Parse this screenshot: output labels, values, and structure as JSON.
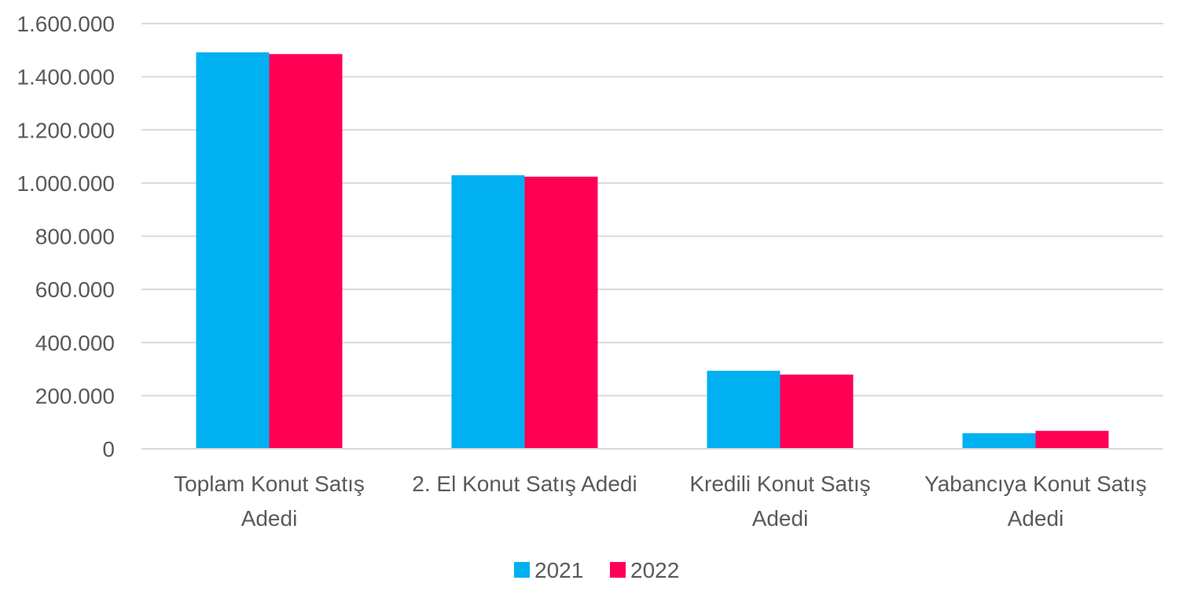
{
  "chart_data": {
    "type": "bar",
    "title": "",
    "xlabel": "",
    "ylabel": "",
    "categories": [
      [
        "Toplam Konut Satış",
        "Adedi"
      ],
      [
        "2. El Konut Satış Adedi"
      ],
      [
        "Kredili Konut Satış",
        "Adedi"
      ],
      [
        "Yabancıya Konut Satış",
        "Adedi"
      ]
    ],
    "series": [
      {
        "name": "2021",
        "color": "#00B0F0",
        "values": [
          1491856,
          1029491,
          293686,
          58576
        ]
      },
      {
        "name": "2022",
        "color": "#FF0055",
        "values": [
          1485468,
          1023920,
          279236,
          67490
        ]
      }
    ],
    "ylim": [
      0,
      1600000
    ],
    "yticks": [
      0,
      200000,
      400000,
      600000,
      800000,
      1000000,
      1200000,
      1400000,
      1600000
    ],
    "ytick_labels": [
      "0",
      "200.000",
      "400.000",
      "600.000",
      "800.000",
      "1.000.000",
      "1.200.000",
      "1.400.000",
      "1.600.000"
    ],
    "grid": true,
    "gridline_color": "#D9D9D9",
    "legend_position": "bottom"
  }
}
